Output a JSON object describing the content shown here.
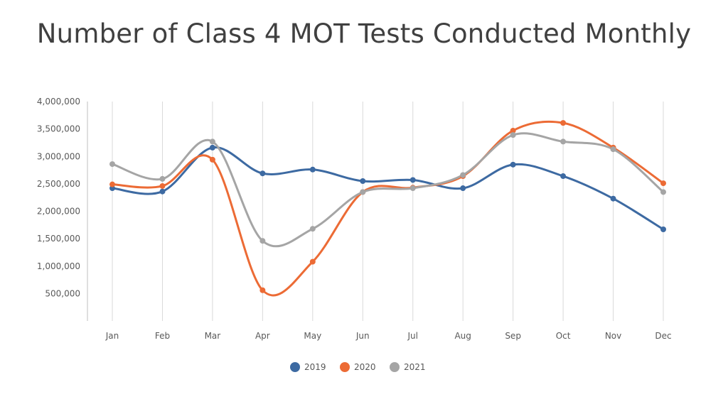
{
  "chart_data": {
    "type": "line",
    "title": "Number of Class 4 MOT Tests Conducted Monthly",
    "xlabel": "",
    "ylabel": "",
    "categories": [
      "Jan",
      "Feb",
      "Mar",
      "Apr",
      "May",
      "Jun",
      "Jul",
      "Aug",
      "Sep",
      "Oct",
      "Nov",
      "Dec"
    ],
    "ylim": [
      0,
      4000000
    ],
    "yticks": [
      500000,
      1000000,
      1500000,
      2000000,
      2500000,
      3000000,
      3500000,
      4000000
    ],
    "ytick_labels": [
      "500,000",
      "1,000,000",
      "1,500,000",
      "2,000,000",
      "2,500,000",
      "3,000,000",
      "3,500,000",
      "4,000,000"
    ],
    "grid": "vertical",
    "legend_position": "bottom",
    "smooth": true,
    "series": [
      {
        "name": "2019",
        "color": "#3d6aa2",
        "values": [
          2420000,
          2360000,
          3160000,
          2690000,
          2760000,
          2550000,
          2570000,
          2420000,
          2850000,
          2640000,
          2230000,
          1670000
        ]
      },
      {
        "name": "2020",
        "color": "#ec6b35",
        "values": [
          2490000,
          2460000,
          2940000,
          560000,
          1080000,
          2350000,
          2430000,
          2640000,
          3470000,
          3610000,
          3160000,
          2510000
        ]
      },
      {
        "name": "2021",
        "color": "#a5a5a5",
        "values": [
          2860000,
          2590000,
          3270000,
          1460000,
          1680000,
          2350000,
          2420000,
          2660000,
          3390000,
          3270000,
          3130000,
          2350000
        ]
      }
    ]
  }
}
